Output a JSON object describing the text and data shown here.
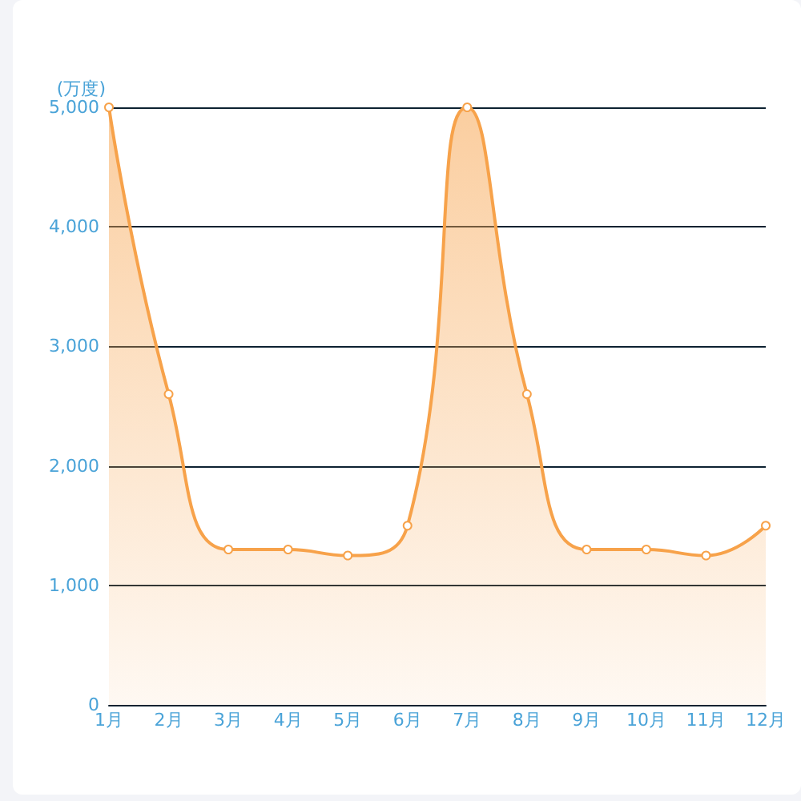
{
  "chart_data": {
    "type": "area",
    "ylabel": "(万度)",
    "categories": [
      "1月",
      "2月",
      "3月",
      "4月",
      "5月",
      "6月",
      "7月",
      "8月",
      "9月",
      "10月",
      "11月",
      "12月"
    ],
    "values": [
      5000,
      2600,
      1300,
      1300,
      1250,
      1500,
      5000,
      2600,
      1300,
      1300,
      1250,
      1500
    ],
    "color": "#f7a24a",
    "ylim": [
      0,
      5000
    ],
    "yticks": [
      0,
      {
        "value": 1000,
        "label": "1,000"
      },
      {
        "value": 2000,
        "label": "2,000"
      },
      {
        "value": 3000,
        "label": "3,000"
      },
      {
        "value": 4000,
        "label": "4,000"
      },
      {
        "value": 5000,
        "label": "5,000"
      }
    ],
    "grid": "y",
    "marker": "circle"
  }
}
